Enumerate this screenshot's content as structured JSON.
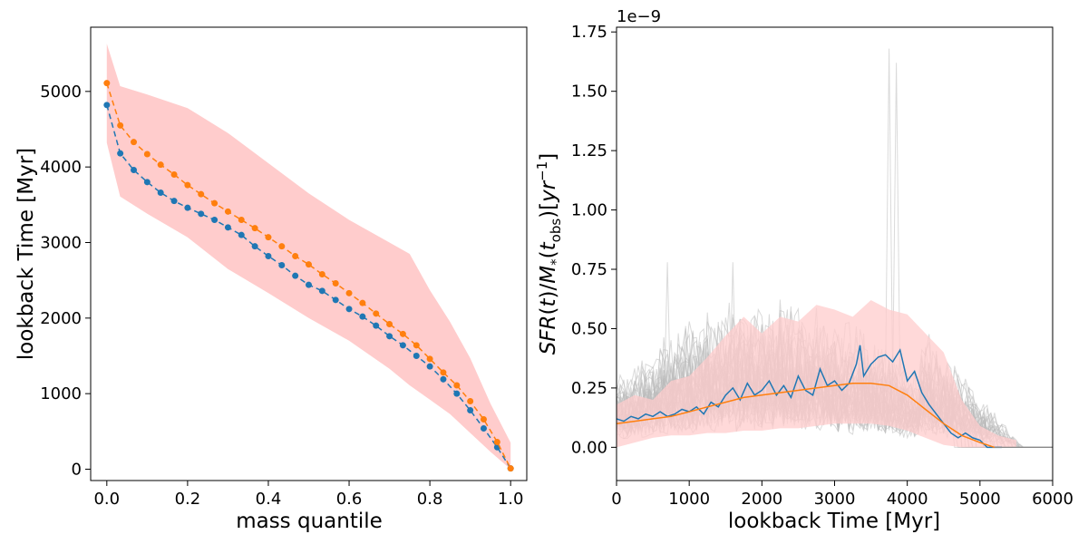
{
  "chart_data": [
    {
      "type": "line",
      "xlabel": "mass quantile",
      "ylabel": "lookback Time [Myr]",
      "xlim": [
        -0.04,
        1.04
      ],
      "ylim": [
        -150,
        5850
      ],
      "xticks": [
        0.0,
        0.2,
        0.4,
        0.6,
        0.8,
        1.0
      ],
      "xtick_labels": [
        "0.0",
        "0.2",
        "0.4",
        "0.6",
        "0.8",
        "1.0"
      ],
      "yticks": [
        0,
        1000,
        2000,
        3000,
        4000,
        5000
      ],
      "ytick_labels": [
        "0",
        "1000",
        "2000",
        "3000",
        "4000",
        "5000"
      ],
      "grid": false,
      "x": [
        0.0,
        0.0333,
        0.0667,
        0.1,
        0.1333,
        0.1667,
        0.2,
        0.2333,
        0.2667,
        0.3,
        0.3333,
        0.3667,
        0.4,
        0.4333,
        0.4667,
        0.5,
        0.5333,
        0.5667,
        0.6,
        0.6333,
        0.6667,
        0.7,
        0.7333,
        0.7667,
        0.8,
        0.8333,
        0.8667,
        0.9,
        0.9333,
        0.9667,
        1.0
      ],
      "series": [
        {
          "color": "#1f77b4",
          "style": "dashed-with-markers",
          "values": [
            4820,
            4180,
            3960,
            3800,
            3660,
            3550,
            3460,
            3380,
            3300,
            3200,
            3100,
            2950,
            2820,
            2700,
            2560,
            2440,
            2360,
            2240,
            2120,
            2020,
            1900,
            1760,
            1640,
            1500,
            1360,
            1190,
            1000,
            780,
            540,
            290,
            10
          ]
        },
        {
          "color": "#ff7f0e",
          "style": "dashed-with-markers",
          "values": [
            5110,
            4550,
            4330,
            4170,
            4030,
            3900,
            3760,
            3640,
            3520,
            3410,
            3300,
            3190,
            3070,
            2950,
            2820,
            2710,
            2580,
            2460,
            2330,
            2200,
            2060,
            1920,
            1790,
            1640,
            1460,
            1280,
            1110,
            900,
            660,
            360,
            10
          ]
        }
      ],
      "band": {
        "color": "#ffcccc",
        "x": [
          0.0,
          0.033,
          0.1,
          0.2,
          0.3,
          0.4,
          0.5,
          0.6,
          0.7,
          0.75,
          0.8,
          0.85,
          0.9,
          0.95,
          1.0
        ],
        "upper": [
          5630,
          5070,
          4960,
          4780,
          4450,
          4050,
          3650,
          3300,
          3000,
          2850,
          2370,
          1950,
          1470,
          870,
          350
        ],
        "lower": [
          4320,
          3610,
          3380,
          3070,
          2650,
          2330,
          2000,
          1700,
          1330,
          1110,
          920,
          730,
          480,
          230,
          0
        ]
      }
    },
    {
      "type": "line",
      "xlabel": "lookback Time [Myr]",
      "ylabel": "SFR(t)/M*(t_obs)[yr^-1]",
      "yoffset_label": "1e−9",
      "xlim": [
        0,
        6000
      ],
      "ylim": [
        -0.14,
        1.77
      ],
      "xticks": [
        0,
        1000,
        2000,
        3000,
        4000,
        5000,
        6000
      ],
      "xtick_labels": [
        "0",
        "1000",
        "2000",
        "3000",
        "4000",
        "5000",
        "6000"
      ],
      "yticks": [
        0.0,
        0.25,
        0.5,
        0.75,
        1.0,
        1.25,
        1.5,
        1.75
      ],
      "ytick_labels": [
        "0.00",
        "0.25",
        "0.50",
        "0.75",
        "1.00",
        "1.25",
        "1.50",
        "1.75"
      ],
      "grid": false,
      "series": [
        {
          "color": "#1f77b4",
          "x": [
            0,
            100,
            200,
            300,
            400,
            500,
            600,
            700,
            800,
            900,
            1000,
            1100,
            1200,
            1300,
            1400,
            1500,
            1600,
            1700,
            1800,
            1900,
            2000,
            2100,
            2200,
            2300,
            2400,
            2500,
            2600,
            2700,
            2800,
            2900,
            3000,
            3100,
            3200,
            3300,
            3350,
            3400,
            3500,
            3600,
            3700,
            3800,
            3900,
            4000,
            4100,
            4200,
            4300,
            4400,
            4500,
            4600,
            4700,
            4800,
            4900,
            5000,
            5100,
            5200,
            5300
          ],
          "values": [
            0.12,
            0.11,
            0.13,
            0.12,
            0.14,
            0.13,
            0.15,
            0.13,
            0.14,
            0.16,
            0.15,
            0.17,
            0.14,
            0.19,
            0.17,
            0.22,
            0.25,
            0.2,
            0.27,
            0.22,
            0.24,
            0.28,
            0.22,
            0.26,
            0.21,
            0.3,
            0.24,
            0.22,
            0.33,
            0.26,
            0.28,
            0.24,
            0.27,
            0.35,
            0.43,
            0.3,
            0.35,
            0.38,
            0.39,
            0.36,
            0.41,
            0.28,
            0.32,
            0.23,
            0.18,
            0.14,
            0.1,
            0.06,
            0.04,
            0.06,
            0.04,
            0.03,
            0.0,
            0.0,
            0.0
          ]
        },
        {
          "color": "#ff7f0e",
          "x": [
            0,
            250,
            500,
            750,
            1000,
            1250,
            1500,
            1750,
            2000,
            2250,
            2500,
            2750,
            3000,
            3250,
            3500,
            3750,
            4000,
            4250,
            4500,
            4750,
            5000,
            5100,
            5200
          ],
          "values": [
            0.1,
            0.11,
            0.12,
            0.13,
            0.15,
            0.17,
            0.19,
            0.21,
            0.22,
            0.23,
            0.24,
            0.25,
            0.26,
            0.27,
            0.27,
            0.26,
            0.22,
            0.16,
            0.1,
            0.05,
            0.02,
            0.01,
            0.0
          ]
        }
      ],
      "band": {
        "color": "#ffcccc",
        "x": [
          0,
          250,
          500,
          750,
          1000,
          1250,
          1500,
          1750,
          2000,
          2250,
          2500,
          2750,
          3000,
          3250,
          3500,
          3750,
          4000,
          4250,
          4500,
          4750,
          5000,
          5250,
          5500
        ],
        "upper": [
          0.18,
          0.22,
          0.2,
          0.28,
          0.3,
          0.38,
          0.47,
          0.55,
          0.48,
          0.55,
          0.53,
          0.6,
          0.58,
          0.55,
          0.62,
          0.58,
          0.56,
          0.48,
          0.4,
          0.2,
          0.09,
          0.05,
          0.03
        ],
        "lower": [
          0.0,
          0.02,
          0.04,
          0.05,
          0.05,
          0.06,
          0.06,
          0.07,
          0.07,
          0.08,
          0.08,
          0.09,
          0.1,
          0.1,
          0.1,
          0.09,
          0.07,
          0.04,
          0.01,
          0.0,
          0.0,
          0.0,
          0.0
        ]
      },
      "background_lines": {
        "color": "#bbbbbb",
        "count": 40,
        "peaks": [
          {
            "x": 700,
            "value": 0.78
          },
          {
            "x": 1600,
            "value": 0.78
          },
          {
            "x": 3750,
            "value": 1.68
          },
          {
            "x": 3850,
            "value": 1.62
          }
        ]
      }
    }
  ]
}
